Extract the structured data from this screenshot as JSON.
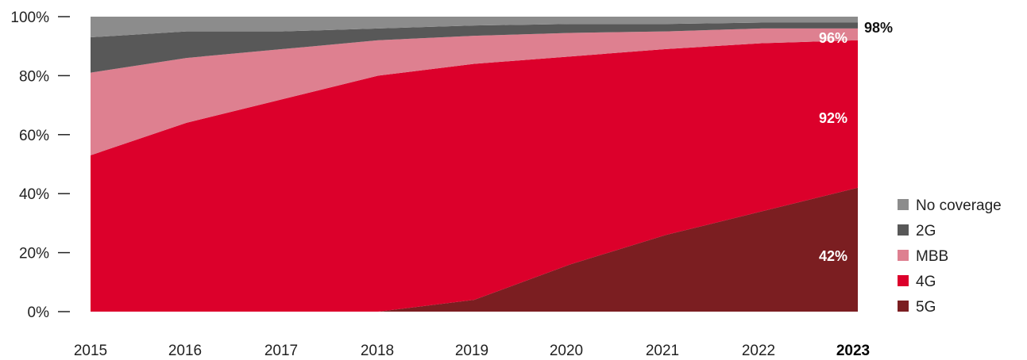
{
  "chart_data": {
    "type": "area",
    "stacked": true,
    "x": [
      "2015",
      "2016",
      "2017",
      "2018",
      "2019",
      "2020",
      "2021",
      "2022",
      "2023"
    ],
    "highlight_x": "2023",
    "ylim": [
      0,
      100
    ],
    "y_ticks": [
      "0%",
      "20%",
      "40%",
      "60%",
      "80%",
      "100%"
    ],
    "series": [
      {
        "name": "5G",
        "color": "#7b1e21",
        "values": [
          0,
          0,
          0,
          0,
          4,
          16,
          26,
          34,
          42
        ]
      },
      {
        "name": "4G",
        "color": "#dc002b",
        "values": [
          53,
          64,
          72,
          80,
          80,
          70.5,
          63,
          57,
          50
        ]
      },
      {
        "name": "MBB",
        "color": "#de8090",
        "values": [
          28,
          22,
          17,
          12,
          9.5,
          8,
          6,
          5,
          4
        ]
      },
      {
        "name": "2G",
        "color": "#585858",
        "values": [
          12,
          9,
          6,
          4,
          3.5,
          3,
          2.5,
          2,
          2
        ]
      },
      {
        "name": "No coverage",
        "color": "#8c8c8c",
        "values": [
          7,
          5,
          5,
          4,
          3,
          2.5,
          2.5,
          2,
          2
        ]
      }
    ],
    "annotations": [
      {
        "text": "98%",
        "x": "2023",
        "y": 98,
        "color": "#111111"
      },
      {
        "text": "96%",
        "x": "2023",
        "y": 96,
        "color": "#ffffff"
      },
      {
        "text": "92%",
        "x": "2023",
        "y": 92,
        "color": "#ffffff"
      },
      {
        "text": "42%",
        "x": "2023",
        "y": 42,
        "color": "#ffffff"
      }
    ],
    "legend": {
      "placement": "right",
      "items": [
        "No coverage",
        "2G",
        "MBB",
        "4G",
        "5G"
      ]
    },
    "grid": false
  }
}
